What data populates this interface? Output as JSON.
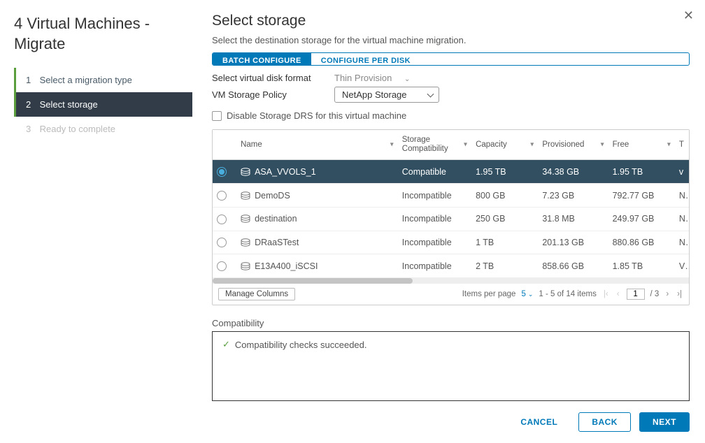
{
  "colors": {
    "accent": "#0079b8",
    "sidebar_active_bg": "#313c48",
    "success": "#5a9e3e",
    "row_selected": "#324f61"
  },
  "header": {
    "title": "4 Virtual Machines - Migrate"
  },
  "steps": [
    {
      "num": "1",
      "label": "Select a migration type",
      "state": "done"
    },
    {
      "num": "2",
      "label": "Select storage",
      "state": "active"
    },
    {
      "num": "3",
      "label": "Ready to complete",
      "state": "pending"
    }
  ],
  "main": {
    "title": "Select storage",
    "subtitle": "Select the destination storage for the virtual machine migration.",
    "tabs": {
      "batch": "BATCH CONFIGURE",
      "perdisk": "CONFIGURE PER DISK",
      "active": "batch"
    },
    "disk_format": {
      "label": "Select virtual disk format",
      "value": "Thin Provision"
    },
    "storage_policy": {
      "label": "VM Storage Policy",
      "value": "NetApp Storage"
    },
    "disable_drs": {
      "label": "Disable Storage DRS for this virtual machine",
      "checked": false
    }
  },
  "table": {
    "columns": [
      "Name",
      "Storage Compatibility",
      "Capacity",
      "Provisioned",
      "Free",
      "T"
    ],
    "rows": [
      {
        "selected": true,
        "name": "ASA_VVOLS_1",
        "compat": "Compatible",
        "capacity": "1.95 TB",
        "prov": "34.38 GB",
        "free": "1.95 TB",
        "t": "v"
      },
      {
        "selected": false,
        "name": "DemoDS",
        "compat": "Incompatible",
        "capacity": "800 GB",
        "prov": "7.23 GB",
        "free": "792.77 GB",
        "t": "N"
      },
      {
        "selected": false,
        "name": "destination",
        "compat": "Incompatible",
        "capacity": "250 GB",
        "prov": "31.8 MB",
        "free": "249.97 GB",
        "t": "N"
      },
      {
        "selected": false,
        "name": "DRaaSTest",
        "compat": "Incompatible",
        "capacity": "1 TB",
        "prov": "201.13 GB",
        "free": "880.86 GB",
        "t": "N"
      },
      {
        "selected": false,
        "name": "E13A400_iSCSI",
        "compat": "Incompatible",
        "capacity": "2 TB",
        "prov": "858.66 GB",
        "free": "1.85 TB",
        "t": "V"
      }
    ],
    "manage_columns": "Manage Columns",
    "items_per_page_label": "Items per page",
    "items_per_page_value": "5",
    "range_text": "1 - 5 of 14 items",
    "page_current": "1",
    "page_total": "/ 3"
  },
  "compat": {
    "label": "Compatibility",
    "message": "Compatibility checks succeeded."
  },
  "footer": {
    "cancel": "CANCEL",
    "back": "BACK",
    "next": "NEXT"
  }
}
